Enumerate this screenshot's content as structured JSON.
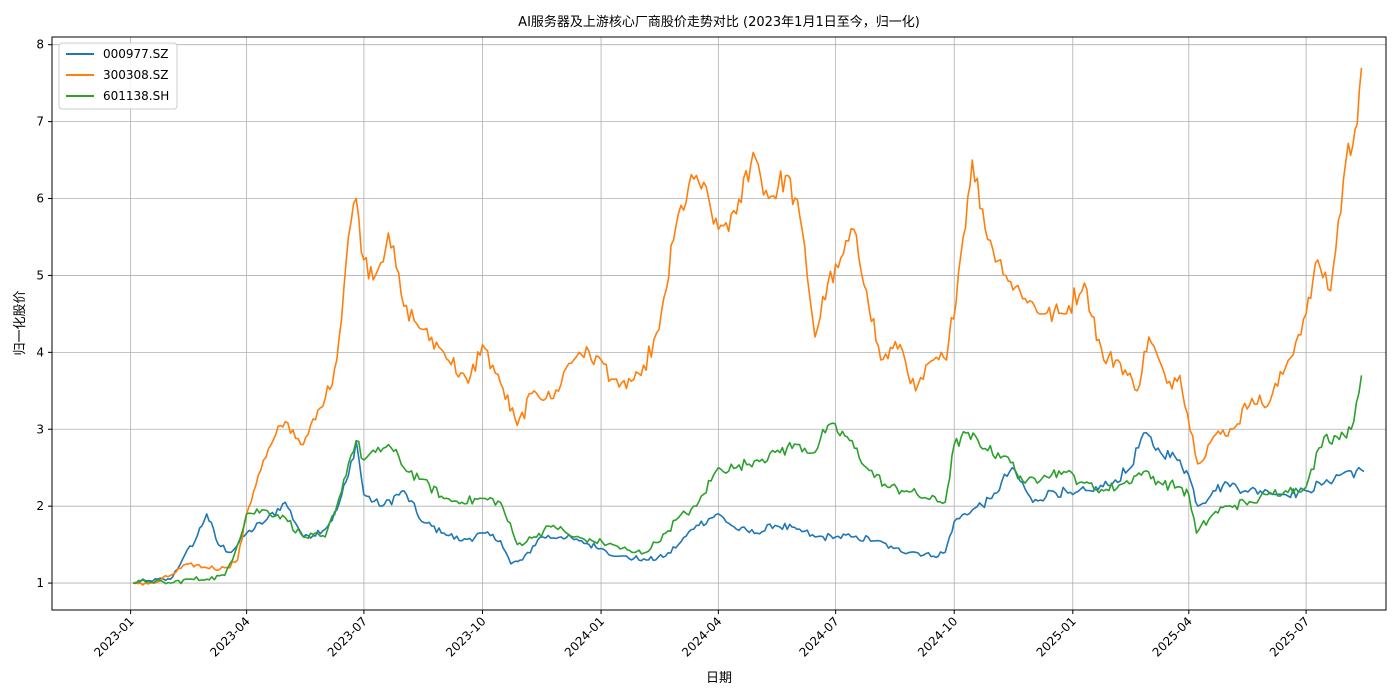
{
  "chart_data": {
    "type": "line",
    "title": "AI服务器及上游核心厂商股价走势对比 (2023年1月1日至今，归一化)",
    "xlabel": "日期",
    "ylabel": "归一化股价",
    "xlim": [
      "2022-11-01",
      "2025-09-01"
    ],
    "ylim": [
      0.65,
      8.1
    ],
    "yticks": [
      1,
      2,
      3,
      4,
      5,
      6,
      7,
      8
    ],
    "xticks": [
      "2023-01",
      "2023-04",
      "2023-07",
      "2023-10",
      "2024-01",
      "2024-04",
      "2024-07",
      "2024-10",
      "2025-01",
      "2025-04",
      "2025-07"
    ],
    "grid": true,
    "legend": "top-left",
    "series": [
      {
        "name": "000977.SZ",
        "color": "#1f77b4",
        "x": [
          "2023-01-03",
          "2023-01-16",
          "2023-02-01",
          "2023-02-10",
          "2023-02-20",
          "2023-03-01",
          "2023-03-10",
          "2023-03-20",
          "2023-04-01",
          "2023-04-15",
          "2023-05-01",
          "2023-05-15",
          "2023-06-01",
          "2023-06-10",
          "2023-06-19",
          "2023-06-25",
          "2023-07-01",
          "2023-07-15",
          "2023-08-01",
          "2023-08-15",
          "2023-09-01",
          "2023-09-15",
          "2023-10-01",
          "2023-10-15",
          "2023-10-23",
          "2023-11-01",
          "2023-11-15",
          "2023-12-01",
          "2023-12-15",
          "2024-01-01",
          "2024-01-15",
          "2024-02-05",
          "2024-02-20",
          "2024-03-01",
          "2024-03-15",
          "2024-04-01",
          "2024-04-15",
          "2024-05-01",
          "2024-05-15",
          "2024-06-01",
          "2024-06-15",
          "2024-07-01",
          "2024-07-15",
          "2024-08-01",
          "2024-08-15",
          "2024-09-01",
          "2024-09-15",
          "2024-09-24",
          "2024-10-01",
          "2024-10-15",
          "2024-10-30",
          "2024-11-15",
          "2024-12-01",
          "2024-12-15",
          "2025-01-01",
          "2025-01-15",
          "2025-02-01",
          "2025-02-15",
          "2025-02-25",
          "2025-03-10",
          "2025-03-25",
          "2025-04-01",
          "2025-04-08",
          "2025-04-20",
          "2025-05-01",
          "2025-05-15",
          "2025-06-01",
          "2025-06-15",
          "2025-07-01",
          "2025-07-15",
          "2025-08-01",
          "2025-08-15"
        ],
        "values": [
          1.0,
          1.03,
          1.05,
          1.3,
          1.55,
          1.9,
          1.5,
          1.4,
          1.65,
          1.8,
          2.05,
          1.6,
          1.7,
          1.95,
          2.4,
          2.85,
          2.15,
          2.0,
          2.2,
          1.8,
          1.65,
          1.55,
          1.65,
          1.55,
          1.25,
          1.3,
          1.6,
          1.6,
          1.55,
          1.45,
          1.35,
          1.3,
          1.35,
          1.5,
          1.75,
          1.9,
          1.7,
          1.65,
          1.75,
          1.7,
          1.6,
          1.6,
          1.6,
          1.55,
          1.45,
          1.4,
          1.35,
          1.4,
          1.8,
          1.95,
          2.1,
          2.5,
          2.05,
          2.2,
          2.15,
          2.2,
          2.3,
          2.5,
          2.95,
          2.7,
          2.6,
          2.4,
          2.0,
          2.2,
          2.3,
          2.2,
          2.2,
          2.15,
          2.2,
          2.3,
          2.45,
          2.45
        ]
      },
      {
        "name": "300308.SZ",
        "color": "#ff7f0e",
        "x": [
          "2023-01-03",
          "2023-01-20",
          "2023-02-01",
          "2023-02-15",
          "2023-03-01",
          "2023-03-15",
          "2023-03-25",
          "2023-04-01",
          "2023-04-10",
          "2023-04-20",
          "2023-05-01",
          "2023-05-15",
          "2023-06-01",
          "2023-06-10",
          "2023-06-19",
          "2023-06-25",
          "2023-07-01",
          "2023-07-10",
          "2023-07-20",
          "2023-08-01",
          "2023-08-15",
          "2023-09-01",
          "2023-09-20",
          "2023-10-01",
          "2023-10-15",
          "2023-10-28",
          "2023-11-10",
          "2023-11-25",
          "2023-12-05",
          "2023-12-15",
          "2024-01-01",
          "2024-01-15",
          "2024-02-01",
          "2024-02-15",
          "2024-03-01",
          "2024-03-15",
          "2024-04-01",
          "2024-04-15",
          "2024-04-28",
          "2024-05-10",
          "2024-05-25",
          "2024-06-05",
          "2024-06-15",
          "2024-06-25",
          "2024-07-03",
          "2024-07-15",
          "2024-07-25",
          "2024-08-05",
          "2024-08-20",
          "2024-09-01",
          "2024-09-15",
          "2024-09-25",
          "2024-10-08",
          "2024-10-15",
          "2024-10-25",
          "2024-11-10",
          "2024-11-25",
          "2024-12-10",
          "2024-12-25",
          "2025-01-10",
          "2025-01-25",
          "2025-02-05",
          "2025-02-20",
          "2025-03-01",
          "2025-03-15",
          "2025-03-25",
          "2025-04-08",
          "2025-04-20",
          "2025-05-05",
          "2025-05-20",
          "2025-06-01",
          "2025-06-15",
          "2025-07-01",
          "2025-07-10",
          "2025-07-20",
          "2025-08-01",
          "2025-08-08",
          "2025-08-13"
        ],
        "values": [
          1.0,
          1.0,
          1.1,
          1.25,
          1.2,
          1.2,
          1.3,
          1.9,
          2.4,
          2.8,
          3.1,
          2.8,
          3.4,
          3.9,
          5.5,
          6.0,
          5.2,
          5.0,
          5.55,
          4.6,
          4.3,
          4.0,
          3.6,
          4.1,
          3.6,
          3.05,
          3.5,
          3.4,
          3.8,
          4.0,
          3.9,
          3.55,
          3.7,
          4.3,
          5.8,
          6.3,
          5.6,
          5.8,
          6.6,
          6.0,
          6.3,
          5.6,
          4.2,
          4.9,
          5.1,
          5.6,
          4.8,
          3.9,
          4.1,
          3.5,
          3.9,
          3.9,
          5.5,
          6.5,
          5.6,
          5.0,
          4.7,
          4.5,
          4.5,
          4.9,
          3.9,
          3.9,
          3.5,
          4.2,
          3.6,
          3.7,
          2.55,
          2.9,
          3.0,
          3.4,
          3.3,
          3.8,
          4.5,
          5.2,
          4.8,
          6.5,
          6.9,
          7.7
        ]
      },
      {
        "name": "601138.SH",
        "color": "#2ca02c",
        "x": [
          "2023-01-03",
          "2023-01-15",
          "2023-02-01",
          "2023-02-15",
          "2023-03-01",
          "2023-03-15",
          "2023-03-25",
          "2023-04-01",
          "2023-04-15",
          "2023-05-01",
          "2023-05-15",
          "2023-06-01",
          "2023-06-10",
          "2023-06-19",
          "2023-06-25",
          "2023-07-01",
          "2023-07-10",
          "2023-07-20",
          "2023-08-01",
          "2023-08-15",
          "2023-09-01",
          "2023-09-15",
          "2023-10-01",
          "2023-10-15",
          "2023-10-28",
          "2023-11-10",
          "2023-11-25",
          "2023-12-10",
          "2023-12-25",
          "2024-01-10",
          "2024-01-25",
          "2024-02-05",
          "2024-02-20",
          "2024-03-01",
          "2024-03-15",
          "2024-04-01",
          "2024-04-15",
          "2024-05-01",
          "2024-05-15",
          "2024-06-01",
          "2024-06-15",
          "2024-06-25",
          "2024-07-10",
          "2024-07-25",
          "2024-08-10",
          "2024-08-25",
          "2024-09-10",
          "2024-09-24",
          "2024-10-01",
          "2024-10-10",
          "2024-10-25",
          "2024-11-10",
          "2024-11-25",
          "2024-12-10",
          "2024-12-25",
          "2025-01-10",
          "2025-01-25",
          "2025-02-10",
          "2025-02-25",
          "2025-03-10",
          "2025-03-25",
          "2025-04-01",
          "2025-04-07",
          "2025-04-20",
          "2025-05-01",
          "2025-05-20",
          "2025-06-01",
          "2025-06-15",
          "2025-07-01",
          "2025-07-15",
          "2025-07-25",
          "2025-08-05",
          "2025-08-13"
        ],
        "values": [
          1.0,
          1.02,
          1.0,
          1.05,
          1.05,
          1.1,
          1.5,
          1.9,
          1.95,
          1.85,
          1.6,
          1.6,
          2.0,
          2.55,
          2.85,
          2.6,
          2.7,
          2.8,
          2.5,
          2.35,
          2.1,
          2.05,
          2.1,
          2.05,
          1.5,
          1.6,
          1.75,
          1.6,
          1.55,
          1.5,
          1.4,
          1.4,
          1.65,
          1.85,
          2.0,
          2.5,
          2.5,
          2.6,
          2.7,
          2.8,
          2.7,
          3.05,
          2.9,
          2.5,
          2.25,
          2.2,
          2.1,
          2.05,
          2.8,
          2.95,
          2.75,
          2.65,
          2.3,
          2.4,
          2.45,
          2.3,
          2.2,
          2.3,
          2.45,
          2.3,
          2.25,
          2.15,
          1.65,
          1.9,
          2.0,
          2.05,
          2.15,
          2.2,
          2.25,
          2.9,
          2.9,
          3.0,
          3.7
        ]
      }
    ]
  }
}
